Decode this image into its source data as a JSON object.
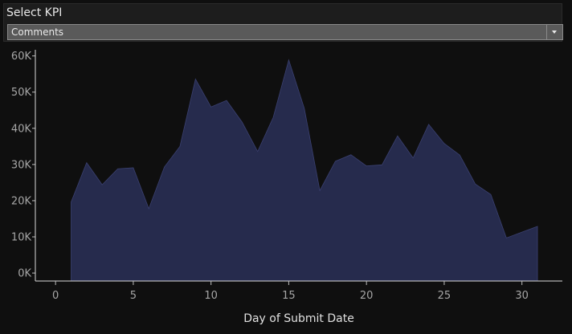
{
  "kpi_selector": {
    "title": "Select KPI",
    "selected": "Comments"
  },
  "chart_data": {
    "type": "area",
    "title": "",
    "xlabel": "Day of Submit Date",
    "ylabel": "",
    "x": [
      1,
      2,
      3,
      4,
      5,
      6,
      7,
      8,
      9,
      10,
      11,
      12,
      13,
      14,
      15,
      16,
      17,
      18,
      19,
      20,
      21,
      22,
      23,
      24,
      25,
      26,
      27,
      28,
      29,
      30,
      31
    ],
    "series": [
      {
        "values": [
          19600,
          30500,
          24400,
          28800,
          29100,
          17800,
          29300,
          35000,
          53600,
          45900,
          47700,
          41700,
          33600,
          43000,
          58900,
          45500,
          22800,
          30900,
          32700,
          29600,
          29900,
          37900,
          31800,
          41100,
          35800,
          32600,
          24600,
          21700,
          9700,
          11300,
          12900
        ],
        "color": "#262b4d"
      }
    ],
    "xlim": [
      -1.3,
      32.6
    ],
    "ylim": [
      -2200,
      61700
    ],
    "x_ticks": [
      0,
      5,
      10,
      15,
      20,
      25,
      30
    ],
    "x_tick_labels": [
      "0",
      "5",
      "10",
      "15",
      "20",
      "25",
      "30"
    ],
    "y_ticks": [
      0,
      10000,
      20000,
      30000,
      40000,
      50000,
      60000
    ],
    "y_tick_labels": [
      "0K",
      "10K",
      "20K",
      "30K",
      "40K",
      "50K",
      "60K"
    ],
    "grid": false,
    "fill_color": "#262b4d",
    "line_color": "#3a4070",
    "axis_color": "#d8d8d8"
  }
}
